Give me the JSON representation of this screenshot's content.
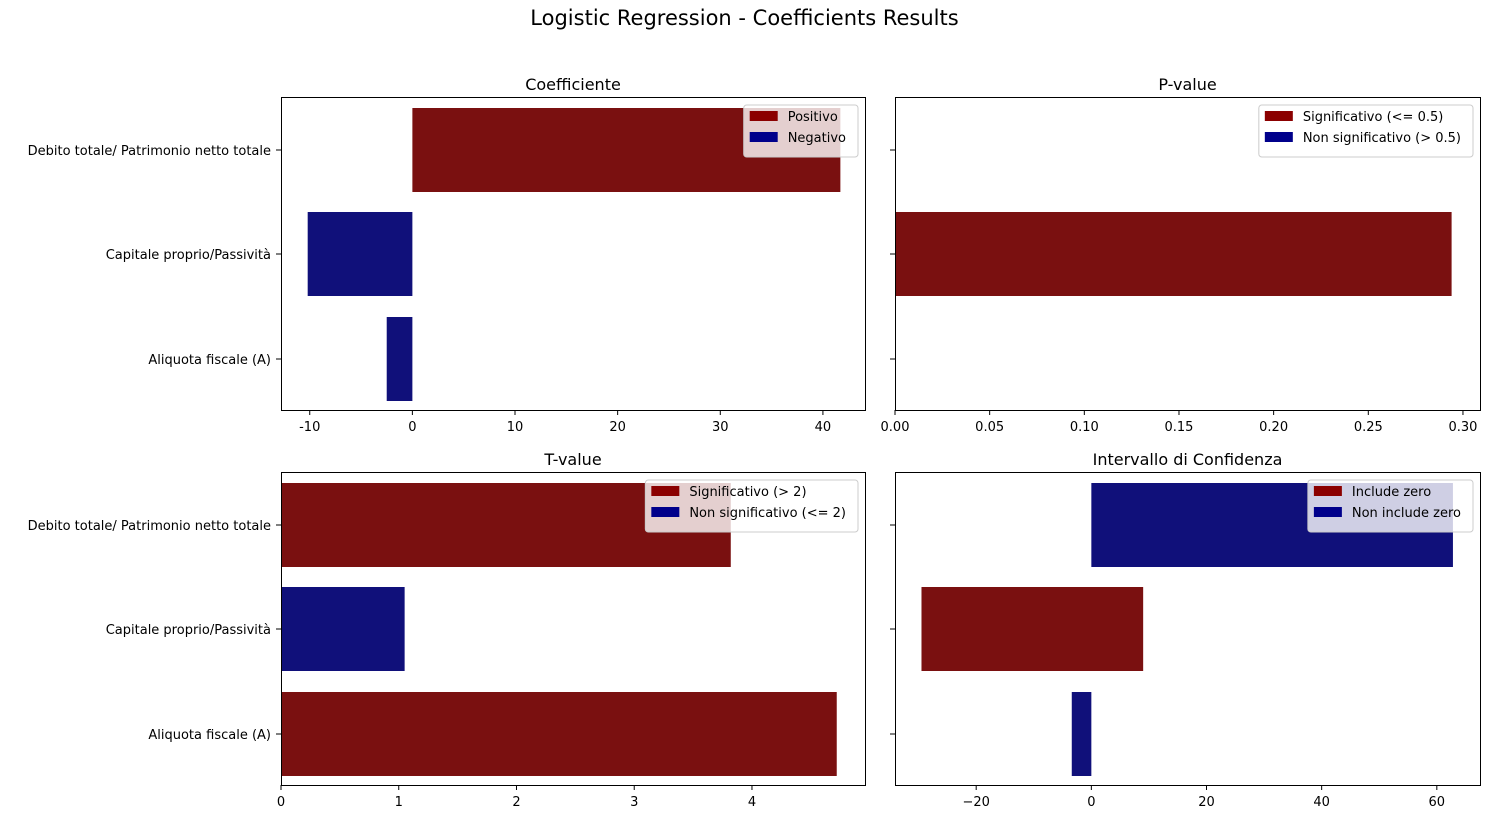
{
  "figure": {
    "title": "Logistic Regression - Coefficients Results"
  },
  "colors": {
    "red": "#7a1010",
    "blue": "#10107a",
    "legend_red": "#8b0000",
    "legend_blue": "#00008b"
  },
  "chart_data": [
    {
      "id": "coef",
      "type": "bar",
      "orientation": "horizontal",
      "title": "Coefficiente",
      "categories": [
        "Debito totale/ Patrimonio netto totale",
        "Capitale proprio/Passività",
        "Aliquota fiscale (A)"
      ],
      "bars": [
        {
          "from": 0,
          "to": 41.7,
          "color": "red"
        },
        {
          "from": 0,
          "to": -10.2,
          "color": "blue"
        },
        {
          "from": 0,
          "to": -2.5,
          "color": "blue"
        }
      ],
      "xlim": [
        -12.8,
        44.1
      ],
      "xticks": [
        -10,
        0,
        10,
        20,
        30,
        40
      ],
      "show_ylabels": true,
      "legend": {
        "position": "upper right",
        "entries": [
          {
            "label": "Positivo",
            "color": "legend_red"
          },
          {
            "label": "Negativo",
            "color": "legend_blue"
          }
        ]
      }
    },
    {
      "id": "pvalue",
      "type": "bar",
      "orientation": "horizontal",
      "title": "P-value",
      "categories": [
        "Debito totale/ Patrimonio netto totale",
        "Capitale proprio/Passività",
        "Aliquota fiscale (A)"
      ],
      "bars": [
        {
          "from": 0,
          "to": 0.0,
          "color": "red"
        },
        {
          "from": 0,
          "to": 0.294,
          "color": "red"
        },
        {
          "from": 0,
          "to": 0.0,
          "color": "red"
        }
      ],
      "xlim": [
        0,
        0.309
      ],
      "xticks": [
        0.0,
        0.05,
        0.1,
        0.15,
        0.2,
        0.25,
        0.3
      ],
      "xtick_labels": [
        "0.00",
        "0.05",
        "0.10",
        "0.15",
        "0.20",
        "0.25",
        "0.30"
      ],
      "show_ylabels": false,
      "legend": {
        "position": "upper right",
        "entries": [
          {
            "label": "Significativo (<= 0.5)",
            "color": "legend_red"
          },
          {
            "label": "Non significativo (> 0.5)",
            "color": "legend_blue"
          }
        ]
      }
    },
    {
      "id": "tvalue",
      "type": "bar",
      "orientation": "horizontal",
      "title": "T-value",
      "categories": [
        "Debito totale/ Patrimonio netto totale",
        "Capitale proprio/Passività",
        "Aliquota fiscale (A)"
      ],
      "bars": [
        {
          "from": 0,
          "to": 3.82,
          "color": "red"
        },
        {
          "from": 0,
          "to": 1.05,
          "color": "blue"
        },
        {
          "from": 0,
          "to": 4.72,
          "color": "red"
        }
      ],
      "xlim": [
        0,
        4.96
      ],
      "xticks": [
        0,
        1,
        2,
        3,
        4
      ],
      "show_ylabels": true,
      "legend": {
        "position": "upper right",
        "entries": [
          {
            "label": "Significativo (> 2)",
            "color": "legend_red"
          },
          {
            "label": "Non significativo (<= 2)",
            "color": "legend_blue"
          }
        ]
      }
    },
    {
      "id": "ci",
      "type": "bar",
      "orientation": "horizontal",
      "title": "Intervallo di Confidenza",
      "categories": [
        "Debito totale/ Patrimonio netto totale",
        "Capitale proprio/Passività",
        "Aliquota fiscale (A)"
      ],
      "bars": [
        {
          "from": 0,
          "to": 62.8,
          "color": "blue"
        },
        {
          "from": -29.5,
          "to": 9.0,
          "color": "red"
        },
        {
          "from": -3.4,
          "to": 0,
          "color": "blue"
        }
      ],
      "xlim": [
        -34.1,
        67.5
      ],
      "xticks": [
        -20,
        0,
        20,
        40,
        60
      ],
      "xtick_labels": [
        "−20",
        "0",
        "20",
        "40",
        "60"
      ],
      "show_ylabels": false,
      "legend": {
        "position": "upper right",
        "entries": [
          {
            "label": "Include zero",
            "color": "legend_red"
          },
          {
            "label": "Non include zero",
            "color": "legend_blue"
          }
        ]
      }
    }
  ]
}
